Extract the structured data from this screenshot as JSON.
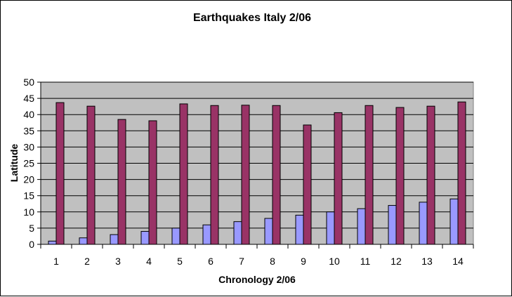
{
  "chart_data": {
    "type": "bar",
    "title": "Earthquakes Italy 2/06",
    "xlabel": "Chronology 2/06",
    "ylabel": "Latitude",
    "categories": [
      "1",
      "2",
      "3",
      "4",
      "5",
      "6",
      "7",
      "8",
      "9",
      "10",
      "11",
      "12",
      "13",
      "14"
    ],
    "series": [
      {
        "color": "#9999ff",
        "values": [
          1,
          2,
          3,
          4,
          5,
          6,
          7,
          8,
          9,
          10,
          11,
          12,
          13,
          14
        ]
      },
      {
        "color": "#993366",
        "values": [
          43.7,
          42.6,
          38.5,
          38.1,
          43.3,
          42.8,
          42.9,
          42.8,
          36.8,
          40.6,
          42.8,
          42.2,
          42.6,
          43.9
        ]
      }
    ],
    "ylim": [
      0,
      50
    ],
    "yticks": [
      0,
      5,
      10,
      15,
      20,
      25,
      30,
      35,
      40,
      45,
      50
    ],
    "grid": true,
    "legend": "none",
    "plot_background": "#c0c0c0"
  }
}
